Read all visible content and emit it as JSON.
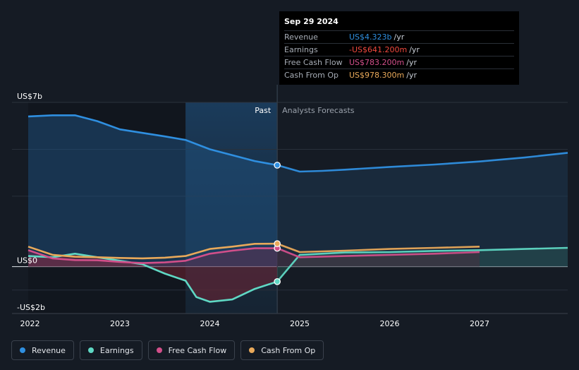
{
  "tooltip": {
    "date": "Sep 29 2024",
    "rows": [
      {
        "label": "Revenue",
        "value": "US$4.323b",
        "unit": "/yr",
        "color": "#2f8fe0"
      },
      {
        "label": "Earnings",
        "value": "-US$641.200m",
        "unit": "/yr",
        "color": "#f0493e"
      },
      {
        "label": "Free Cash Flow",
        "value": "US$783.200m",
        "unit": "/yr",
        "color": "#d24f8a"
      },
      {
        "label": "Cash From Op",
        "value": "US$978.300m",
        "unit": "/yr",
        "color": "#e9a95a"
      }
    ]
  },
  "legend": [
    {
      "label": "Revenue",
      "color": "#2f8fe0"
    },
    {
      "label": "Earnings",
      "color": "#5fd8c4"
    },
    {
      "label": "Free Cash Flow",
      "color": "#d24f8a"
    },
    {
      "label": "Cash From Op",
      "color": "#e9a95a"
    }
  ],
  "chart_data": {
    "type": "line",
    "title": "",
    "units": "US$b",
    "ylim": [
      -2,
      7
    ],
    "xlim": [
      2021.8,
      2027.98
    ],
    "y_tick_labels": [
      {
        "value": 7,
        "label": "US$7b"
      },
      {
        "value": 0,
        "label": "US$0"
      },
      {
        "value": -2,
        "label": "-US$2b"
      }
    ],
    "x_ticks": [
      2022,
      2023,
      2024,
      2025,
      2026,
      2027
    ],
    "x_tick_labels": [
      "2022",
      "2023",
      "2024",
      "2025",
      "2026",
      "2027"
    ],
    "past_label": "Past",
    "forecast_label": "Analysts Forecasts",
    "divider_x": 2024.75,
    "highlight_start": 2023.73,
    "series": [
      {
        "name": "Revenue",
        "color": "#2f8fe0",
        "past": [
          [
            2021.98,
            6.4
          ],
          [
            2022.25,
            6.45
          ],
          [
            2022.5,
            6.45
          ],
          [
            2022.75,
            6.2
          ],
          [
            2023.0,
            5.85
          ],
          [
            2023.25,
            5.7
          ],
          [
            2023.5,
            5.55
          ],
          [
            2023.73,
            5.4
          ],
          [
            2024.0,
            5.0
          ],
          [
            2024.25,
            4.75
          ],
          [
            2024.5,
            4.5
          ],
          [
            2024.75,
            4.323
          ]
        ],
        "forecast": [
          [
            2024.75,
            4.323
          ],
          [
            2025.0,
            4.05
          ],
          [
            2025.25,
            4.08
          ],
          [
            2025.5,
            4.13
          ],
          [
            2026.0,
            4.25
          ],
          [
            2026.5,
            4.35
          ],
          [
            2027.0,
            4.48
          ],
          [
            2027.5,
            4.65
          ],
          [
            2027.98,
            4.85
          ]
        ]
      },
      {
        "name": "Earnings",
        "color": "#5fd8c4",
        "past": [
          [
            2021.98,
            0.45
          ],
          [
            2022.25,
            0.4
          ],
          [
            2022.5,
            0.55
          ],
          [
            2022.75,
            0.4
          ],
          [
            2023.0,
            0.25
          ],
          [
            2023.25,
            0.1
          ],
          [
            2023.5,
            -0.3
          ],
          [
            2023.73,
            -0.6
          ],
          [
            2023.85,
            -1.3
          ],
          [
            2024.0,
            -1.5
          ],
          [
            2024.25,
            -1.4
          ],
          [
            2024.5,
            -0.95
          ],
          [
            2024.75,
            -0.64
          ]
        ],
        "forecast": [
          [
            2024.75,
            -0.64
          ],
          [
            2025.0,
            0.5
          ],
          [
            2025.5,
            0.6
          ],
          [
            2026.0,
            0.62
          ],
          [
            2026.5,
            0.67
          ],
          [
            2027.0,
            0.7
          ],
          [
            2027.5,
            0.75
          ],
          [
            2027.98,
            0.8
          ]
        ]
      },
      {
        "name": "Free Cash Flow",
        "color": "#d24f8a",
        "past": [
          [
            2021.98,
            0.7
          ],
          [
            2022.25,
            0.35
          ],
          [
            2022.5,
            0.28
          ],
          [
            2022.75,
            0.27
          ],
          [
            2023.0,
            0.2
          ],
          [
            2023.25,
            0.15
          ],
          [
            2023.5,
            0.18
          ],
          [
            2023.73,
            0.25
          ],
          [
            2024.0,
            0.55
          ],
          [
            2024.25,
            0.68
          ],
          [
            2024.5,
            0.78
          ],
          [
            2024.75,
            0.783
          ]
        ],
        "forecast": [
          [
            2024.75,
            0.783
          ],
          [
            2025.0,
            0.4
          ],
          [
            2025.5,
            0.45
          ],
          [
            2026.0,
            0.5
          ],
          [
            2026.5,
            0.55
          ],
          [
            2027.0,
            0.62
          ]
        ]
      },
      {
        "name": "Cash From Op",
        "color": "#e9a95a",
        "past": [
          [
            2021.98,
            0.85
          ],
          [
            2022.25,
            0.5
          ],
          [
            2022.5,
            0.42
          ],
          [
            2022.75,
            0.4
          ],
          [
            2023.0,
            0.37
          ],
          [
            2023.25,
            0.35
          ],
          [
            2023.5,
            0.38
          ],
          [
            2023.73,
            0.45
          ],
          [
            2024.0,
            0.75
          ],
          [
            2024.25,
            0.85
          ],
          [
            2024.5,
            0.97
          ],
          [
            2024.75,
            0.978
          ]
        ],
        "forecast": [
          [
            2024.75,
            0.978
          ],
          [
            2025.0,
            0.62
          ],
          [
            2025.5,
            0.68
          ],
          [
            2026.0,
            0.75
          ],
          [
            2026.5,
            0.8
          ],
          [
            2027.0,
            0.85
          ]
        ]
      }
    ],
    "markers": [
      {
        "series": "Revenue",
        "x": 2024.75,
        "y": 4.323
      },
      {
        "series": "Earnings",
        "x": 2024.75,
        "y": -0.64
      },
      {
        "series": "Free Cash Flow",
        "x": 2024.75,
        "y": 0.783
      },
      {
        "series": "Cash From Op",
        "x": 2024.75,
        "y": 0.978
      }
    ]
  }
}
